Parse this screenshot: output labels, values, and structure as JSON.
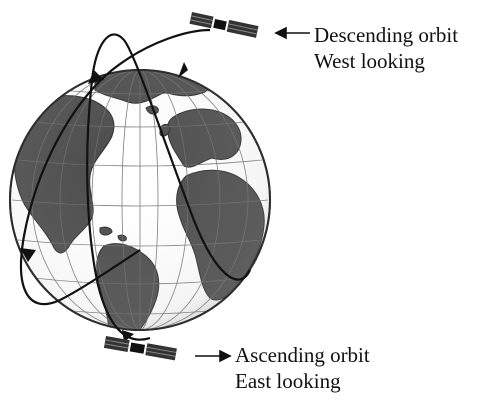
{
  "descending": {
    "line1": "Descending orbit",
    "line2": "West looking"
  },
  "ascending": {
    "line1": "Ascending orbit",
    "line2": "East looking"
  },
  "colors": {
    "ocean": "#ffffff",
    "land": "#4a4a4a",
    "land_dark": "#2e2e2e",
    "orbit": "#111111",
    "grid": "#6a6a6a",
    "text": "#111111"
  },
  "icons": {
    "globe": "globe-icon",
    "satellite_top": "satellite-icon",
    "satellite_bottom": "satellite-icon",
    "arrow_top": "arrow-left-icon",
    "arrow_bottom": "arrow-right-icon"
  }
}
